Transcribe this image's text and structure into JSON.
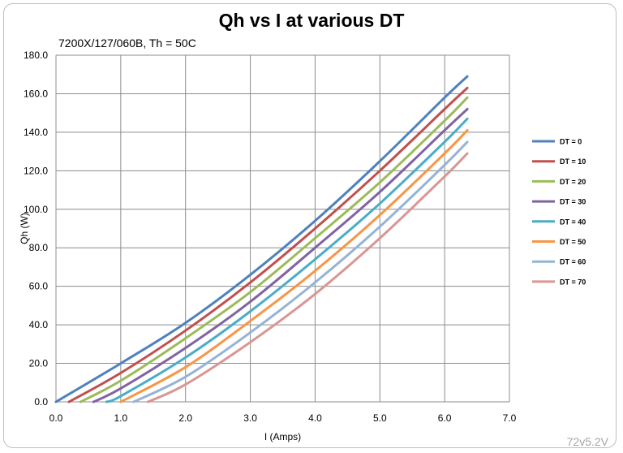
{
  "chart_data": {
    "type": "line",
    "title": "Qh vs I at various DT",
    "subtitle": "7200X/127/060B, Th = 50C",
    "xlabel": "I (Amps)",
    "ylabel": "Qh (W)",
    "xlim": [
      0,
      7
    ],
    "ylim": [
      0,
      180
    ],
    "x_ticks": [
      "0.0",
      "1.0",
      "2.0",
      "3.0",
      "4.0",
      "5.0",
      "6.0",
      "7.0"
    ],
    "y_ticks": [
      "0.0",
      "20.0",
      "40.0",
      "60.0",
      "80.0",
      "100.0",
      "120.0",
      "140.0",
      "160.0",
      "180.0"
    ],
    "grid": true,
    "legend_position": "right",
    "watermark": "72v5.2V",
    "series": [
      {
        "name": "DT = 0",
        "color": "#4f81bd",
        "points": [
          [
            0.0,
            0
          ],
          [
            1.0,
            20
          ],
          [
            2.0,
            41
          ],
          [
            3.0,
            66
          ],
          [
            4.0,
            94
          ],
          [
            5.0,
            125
          ],
          [
            6.0,
            158
          ],
          [
            6.35,
            169
          ]
        ]
      },
      {
        "name": "DT = 10",
        "color": "#c0504d",
        "points": [
          [
            0.2,
            0
          ],
          [
            1.0,
            15
          ],
          [
            2.0,
            37
          ],
          [
            3.0,
            62
          ],
          [
            4.0,
            90
          ],
          [
            5.0,
            120
          ],
          [
            6.0,
            152
          ],
          [
            6.35,
            163
          ]
        ]
      },
      {
        "name": "DT = 20",
        "color": "#9bbb59",
        "points": [
          [
            0.38,
            0
          ],
          [
            1.0,
            11
          ],
          [
            2.0,
            33
          ],
          [
            3.0,
            57
          ],
          [
            4.0,
            85
          ],
          [
            5.0,
            114
          ],
          [
            6.0,
            146
          ],
          [
            6.35,
            158
          ]
        ]
      },
      {
        "name": "DT = 30",
        "color": "#8064a2",
        "points": [
          [
            0.58,
            0
          ],
          [
            1.0,
            7
          ],
          [
            2.0,
            28
          ],
          [
            3.0,
            52
          ],
          [
            4.0,
            80
          ],
          [
            5.0,
            109
          ],
          [
            6.0,
            141
          ],
          [
            6.35,
            152
          ]
        ]
      },
      {
        "name": "DT = 40",
        "color": "#4bacc6",
        "points": [
          [
            0.78,
            0
          ],
          [
            1.0,
            3
          ],
          [
            2.0,
            23
          ],
          [
            3.0,
            47
          ],
          [
            4.0,
            74
          ],
          [
            5.0,
            103
          ],
          [
            6.0,
            135
          ],
          [
            6.35,
            147
          ]
        ]
      },
      {
        "name": "DT = 50",
        "color": "#f79646",
        "points": [
          [
            1.0,
            0
          ],
          [
            2.0,
            18
          ],
          [
            3.0,
            42
          ],
          [
            4.0,
            68
          ],
          [
            5.0,
            97
          ],
          [
            6.0,
            129
          ],
          [
            6.35,
            141
          ]
        ]
      },
      {
        "name": "DT = 60",
        "color": "#95b3d7",
        "points": [
          [
            1.2,
            0
          ],
          [
            2.0,
            13
          ],
          [
            3.0,
            36
          ],
          [
            4.0,
            62
          ],
          [
            5.0,
            91
          ],
          [
            6.0,
            123
          ],
          [
            6.35,
            135
          ]
        ]
      },
      {
        "name": "DT = 70",
        "color": "#d99694",
        "points": [
          [
            1.42,
            0
          ],
          [
            2.0,
            9
          ],
          [
            3.0,
            31
          ],
          [
            4.0,
            56
          ],
          [
            5.0,
            85
          ],
          [
            6.0,
            117
          ],
          [
            6.35,
            129
          ]
        ]
      }
    ]
  }
}
